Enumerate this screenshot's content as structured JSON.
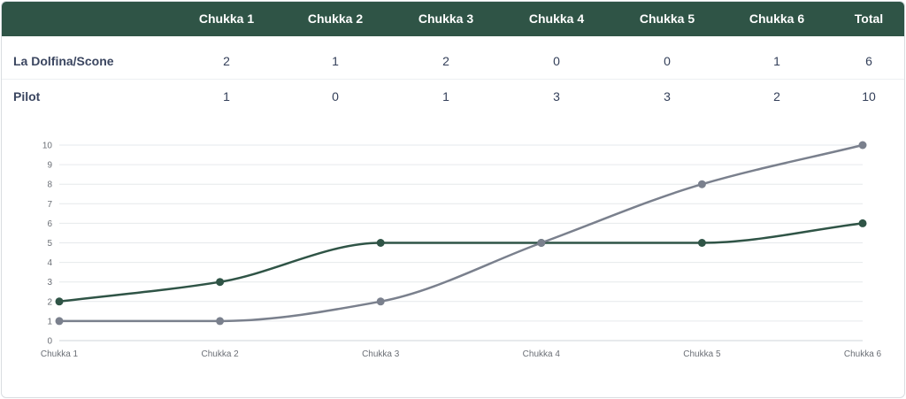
{
  "table": {
    "header": [
      "",
      "Chukka 1",
      "Chukka 2",
      "Chukka 3",
      "Chukka 4",
      "Chukka 5",
      "Chukka 6",
      "Total"
    ],
    "rows": [
      {
        "team": "La Dolfina/Scone",
        "scores": [
          "2",
          "1",
          "2",
          "0",
          "0",
          "1",
          "6"
        ]
      },
      {
        "team": "Pilot",
        "scores": [
          "1",
          "0",
          "1",
          "3",
          "3",
          "2",
          "10"
        ]
      }
    ]
  },
  "colors": {
    "header_bg": "#2f5446",
    "series_dolfina": "#2f5446",
    "series_pilot": "#7a808d",
    "grid": "#e6e9ec"
  },
  "chart_data": {
    "type": "line",
    "categories": [
      "Chukka 1",
      "Chukka 2",
      "Chukka 3",
      "Chukka 4",
      "Chukka 5",
      "Chukka 6"
    ],
    "series": [
      {
        "values": [
          2,
          3,
          5,
          5,
          5,
          6
        ]
      },
      {
        "values": [
          1,
          1,
          2,
          5,
          8,
          10
        ]
      }
    ],
    "title": "",
    "xlabel": "",
    "ylabel": "",
    "ylim": [
      0,
      10
    ],
    "yticks": [
      "0",
      "1",
      "2",
      "3",
      "4",
      "5",
      "6",
      "7",
      "8",
      "9",
      "10"
    ],
    "grid": true,
    "legend": "none",
    "smooth": true
  }
}
